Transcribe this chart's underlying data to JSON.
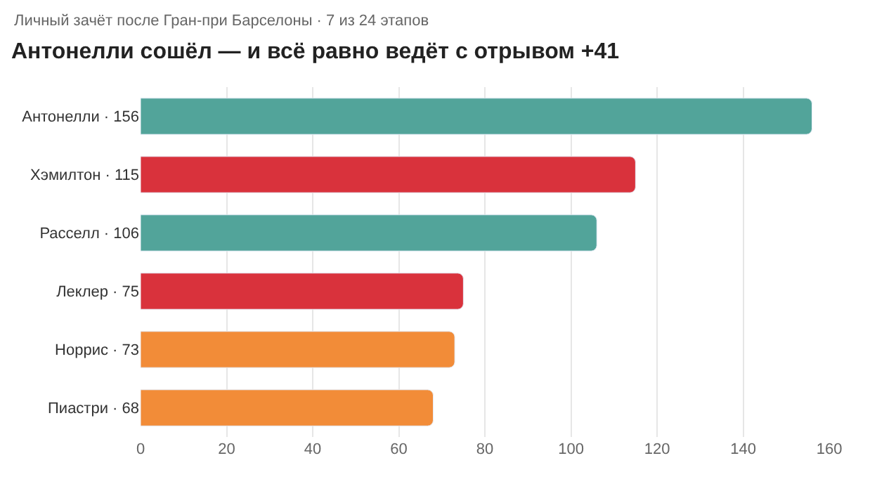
{
  "chart_data": {
    "type": "bar",
    "orientation": "horizontal",
    "subtitle": "Личный зачёт после Гран-при Барселоны · 7 из 24 этапов",
    "title": "Антонелли сошёл — и всё равно ведёт с отрывом +41",
    "categories": [
      "Антонелли · 156",
      "Хэмилтон · 115",
      "Расселл · 106",
      "Леклер · 75",
      "Норрис · 73",
      "Пиастри · 68"
    ],
    "values": [
      156,
      115,
      106,
      75,
      73,
      68
    ],
    "colors": [
      "#52a49a",
      "#d9323c",
      "#52a49a",
      "#d9323c",
      "#f28c38",
      "#f28c38"
    ],
    "xlim": [
      0,
      160
    ],
    "xticks": [
      0,
      20,
      40,
      60,
      80,
      100,
      120,
      140,
      160
    ],
    "grid": "x"
  }
}
